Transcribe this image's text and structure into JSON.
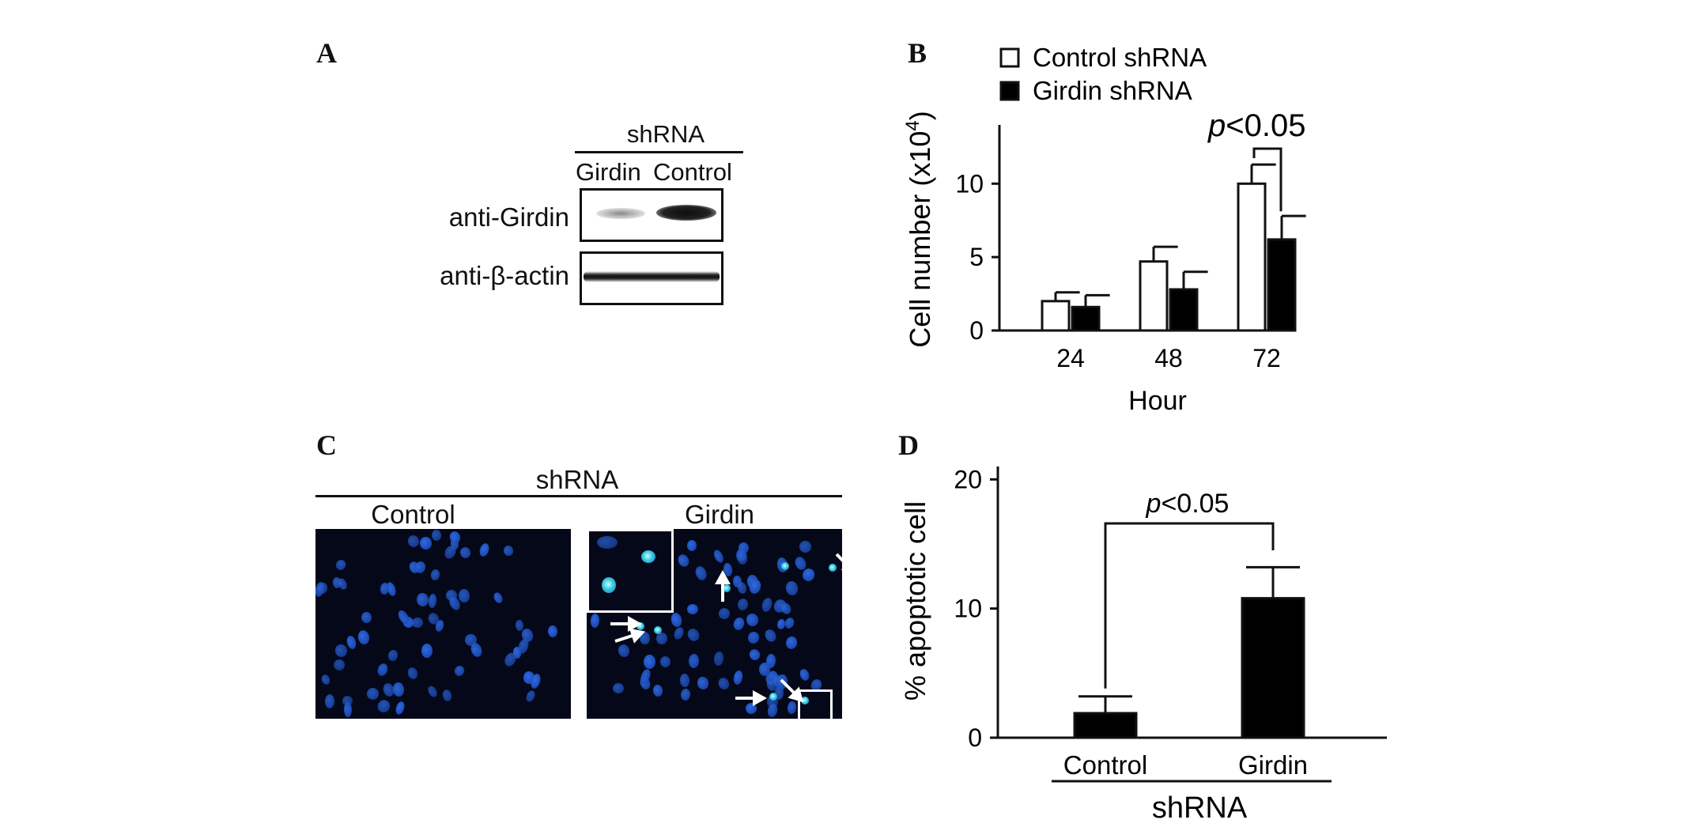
{
  "panels": {
    "A": {
      "letter": "A",
      "header": "shRNA",
      "lanes": [
        "Girdin",
        "Control"
      ],
      "rows": [
        "anti-Girdin",
        "anti-β-actin"
      ]
    },
    "B": {
      "letter": "B",
      "legend": [
        "Control shRNA",
        "Girdin shRNA"
      ],
      "p_label": "p<0.05",
      "p_italic": "p",
      "p_rest": "<0.05"
    },
    "C": {
      "letter": "C",
      "header": "shRNA",
      "conditions": [
        "Control",
        "Girdin"
      ]
    },
    "D": {
      "letter": "D",
      "p_italic": "p",
      "p_rest": "<0.05",
      "group_label": "shRNA"
    }
  },
  "chart_data": [
    {
      "panel": "B",
      "type": "bar",
      "categories": [
        "24",
        "48",
        "72"
      ],
      "series": [
        {
          "name": "Control shRNA",
          "values": [
            2.0,
            4.7,
            10.0
          ],
          "errors": [
            0.6,
            1.0,
            1.3
          ],
          "fill": "#ffffff"
        },
        {
          "name": "Girdin shRNA",
          "values": [
            1.6,
            2.8,
            6.2
          ],
          "errors": [
            0.8,
            1.2,
            1.6
          ],
          "fill": "#000000"
        }
      ],
      "xlabel": "Hour",
      "ylabel": "Cell number (x10⁴)",
      "ylabel_main": "Cell number (x10",
      "ylabel_sup": "4",
      "ylabel_close": ")",
      "yticks": [
        "0",
        "5",
        "10"
      ],
      "ylim": [
        0,
        14
      ],
      "significance": {
        "between": [
          "Control shRNA",
          "Girdin shRNA"
        ],
        "category": "72",
        "label": "p<0.05"
      }
    },
    {
      "panel": "D",
      "type": "bar",
      "categories": [
        "Control",
        "Girdin"
      ],
      "values": [
        1.9,
        10.8
      ],
      "errors": [
        1.3,
        2.4
      ],
      "fill": "#000000",
      "xlabel": "shRNA",
      "ylabel": "% apoptotic cell",
      "yticks": [
        "0",
        "10",
        "20"
      ],
      "ylim": [
        0,
        20
      ],
      "significance": {
        "between": [
          "Control",
          "Girdin"
        ],
        "label": "p<0.05"
      }
    }
  ]
}
